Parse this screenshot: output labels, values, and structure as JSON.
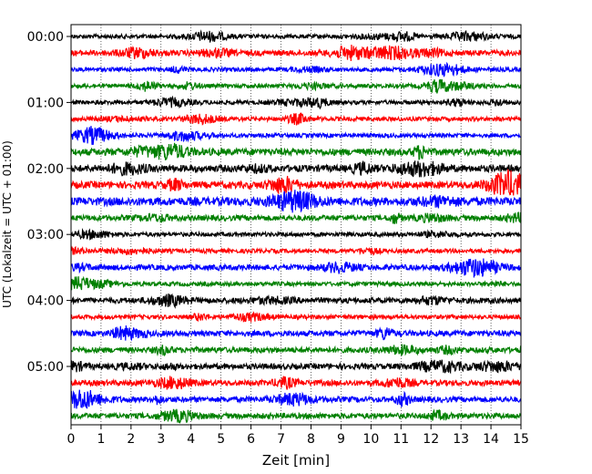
{
  "chart_data": {
    "type": "line",
    "xlabel": "Zeit  [min]",
    "ylabel": "UTC (Lokalzeit = UTC + 01:00)",
    "xlim": [
      0,
      15
    ],
    "x_ticks": [
      "0",
      "1",
      "2",
      "3",
      "4",
      "5",
      "6",
      "7",
      "8",
      "9",
      "10",
      "11",
      "12",
      "13",
      "14",
      "15"
    ],
    "y_tick_labels": [
      "00:00",
      "01:00",
      "02:00",
      "03:00",
      "04:00",
      "05:00"
    ],
    "y_tick_rows": [
      0,
      4,
      8,
      12,
      16,
      20
    ],
    "grid": "vertical-dotted",
    "trace_minutes_per_row": 15,
    "row_count": 24,
    "colors": [
      "#000000",
      "#ff0000",
      "#0000ff",
      "#008000"
    ],
    "rows": [
      {
        "time": "00:00",
        "color": "#000000",
        "amplitude": 3
      },
      {
        "time": "00:15",
        "color": "#ff0000",
        "amplitude": 4
      },
      {
        "time": "00:30",
        "color": "#0000ff",
        "amplitude": 3
      },
      {
        "time": "00:45",
        "color": "#008000",
        "amplitude": 3
      },
      {
        "time": "01:00",
        "color": "#000000",
        "amplitude": 3
      },
      {
        "time": "01:15",
        "color": "#ff0000",
        "amplitude": 3
      },
      {
        "time": "01:30",
        "color": "#0000ff",
        "amplitude": 3
      },
      {
        "time": "01:45",
        "color": "#008000",
        "amplitude": 5
      },
      {
        "time": "02:00",
        "color": "#000000",
        "amplitude": 5
      },
      {
        "time": "02:15",
        "color": "#ff0000",
        "amplitude": 5
      },
      {
        "time": "02:30",
        "color": "#0000ff",
        "amplitude": 6
      },
      {
        "time": "02:45",
        "color": "#008000",
        "amplitude": 4
      },
      {
        "time": "03:00",
        "color": "#000000",
        "amplitude": 3
      },
      {
        "time": "03:15",
        "color": "#ff0000",
        "amplitude": 3
      },
      {
        "time": "03:30",
        "color": "#0000ff",
        "amplitude": 4
      },
      {
        "time": "03:45",
        "color": "#008000",
        "amplitude": 3
      },
      {
        "time": "04:00",
        "color": "#000000",
        "amplitude": 4
      },
      {
        "time": "04:15",
        "color": "#ff0000",
        "amplitude": 3
      },
      {
        "time": "04:30",
        "color": "#0000ff",
        "amplitude": 4
      },
      {
        "time": "04:45",
        "color": "#008000",
        "amplitude": 4
      },
      {
        "time": "05:00",
        "color": "#000000",
        "amplitude": 4
      },
      {
        "time": "05:15",
        "color": "#ff0000",
        "amplitude": 4
      },
      {
        "time": "05:30",
        "color": "#0000ff",
        "amplitude": 4
      },
      {
        "time": "05:45",
        "color": "#008000",
        "amplitude": 4
      }
    ]
  }
}
